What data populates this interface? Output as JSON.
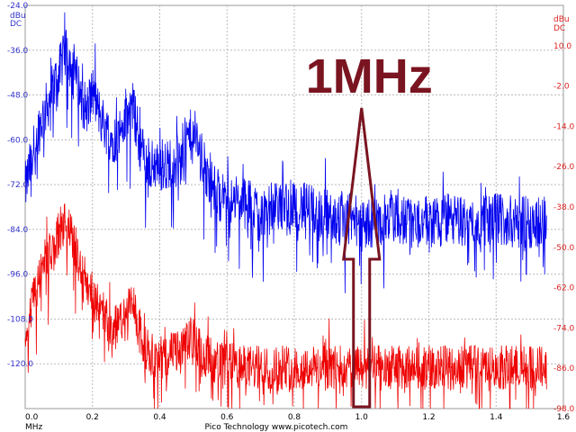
{
  "chart_data": {
    "type": "line",
    "grid": true,
    "x": {
      "min": 0.0,
      "max": 1.6,
      "ticks": [
        "0.0",
        "0.2",
        "0.4",
        "0.6",
        "0.8",
        "1.0",
        "1.2",
        "1.4",
        "1.6"
      ],
      "unit_label": "MHz"
    },
    "left_axis": {
      "min": -132.0,
      "max": -24.0,
      "ticks": [
        "-24.0",
        "-36.0",
        "-48.0",
        "-60.0",
        "-72.0",
        "-84.0",
        "-96.0",
        "-108.0",
        "-120.0"
      ],
      "unit_label_1": "dBu",
      "unit_label_2": "DC",
      "color": "#3333cc"
    },
    "right_axis": {
      "min": -98.0,
      "max": 22.0,
      "ticks": [
        "10.0",
        "-2.0",
        "-14.0",
        "-26.0",
        "-38.0",
        "-50.0",
        "-62.0",
        "-74.0",
        "-86.0",
        "-98.0"
      ],
      "unit_label_1": "dBu",
      "unit_label_2": "DC",
      "color": "#dd2222"
    },
    "series": [
      {
        "color": "#0000ee",
        "axis": "left",
        "x": [
          0.0,
          0.02,
          0.04,
          0.06,
          0.08,
          0.1,
          0.12,
          0.14,
          0.16,
          0.18,
          0.2,
          0.22,
          0.24,
          0.26,
          0.28,
          0.3,
          0.32,
          0.34,
          0.36,
          0.38,
          0.4,
          0.42,
          0.44,
          0.46,
          0.48,
          0.5,
          0.52,
          0.54,
          0.56,
          0.58,
          0.6,
          0.65,
          0.7,
          0.75,
          0.8,
          0.85,
          0.9,
          0.95,
          1.0,
          1.05,
          1.1,
          1.15,
          1.2,
          1.25,
          1.3,
          1.35,
          1.4,
          1.45,
          1.5,
          1.55
        ],
        "y": [
          -73,
          -65,
          -57,
          -52,
          -47,
          -42,
          -37,
          -40,
          -46,
          -52,
          -47,
          -53,
          -57,
          -60,
          -58,
          -55,
          -51,
          -61,
          -66,
          -67,
          -66,
          -67,
          -65,
          -64,
          -60,
          -58,
          -63,
          -70,
          -73,
          -75,
          -76,
          -77,
          -79,
          -78,
          -77,
          -79,
          -80,
          -81,
          -82,
          -82,
          -81,
          -82,
          -82,
          -81,
          -82,
          -82,
          -81,
          -82,
          -82,
          -82
        ],
        "noise": 7
      },
      {
        "color": "#ee0000",
        "axis": "left",
        "x": [
          0.0,
          0.02,
          0.04,
          0.06,
          0.08,
          0.1,
          0.12,
          0.14,
          0.16,
          0.18,
          0.2,
          0.22,
          0.24,
          0.26,
          0.28,
          0.3,
          0.32,
          0.34,
          0.36,
          0.38,
          0.4,
          0.42,
          0.44,
          0.46,
          0.48,
          0.5,
          0.52,
          0.54,
          0.56,
          0.58,
          0.6,
          0.65,
          0.7,
          0.75,
          0.8,
          0.85,
          0.9,
          0.95,
          1.0,
          1.05,
          1.1,
          1.15,
          1.2,
          1.25,
          1.3,
          1.35,
          1.4,
          1.45,
          1.5,
          1.55
        ],
        "y": [
          -112,
          -104,
          -97,
          -93,
          -89,
          -86,
          -82,
          -86,
          -92,
          -98,
          -100,
          -104,
          -108,
          -110,
          -109,
          -107,
          -104,
          -112,
          -116,
          -118,
          -118,
          -118,
          -117,
          -117,
          -114,
          -113,
          -116,
          -118,
          -119,
          -120,
          -120,
          -121,
          -121,
          -121,
          -121,
          -121,
          -121,
          -121,
          -121,
          -121,
          -121,
          -121,
          -121,
          -121,
          -121,
          -121,
          -121,
          -121,
          -121,
          -121
        ],
        "noise": 6
      }
    ],
    "annotation": {
      "text": "1MHz",
      "color": "#7a1420",
      "arrow_x": 1.0
    },
    "footer": "Pico Technology  www.picotech.com"
  }
}
